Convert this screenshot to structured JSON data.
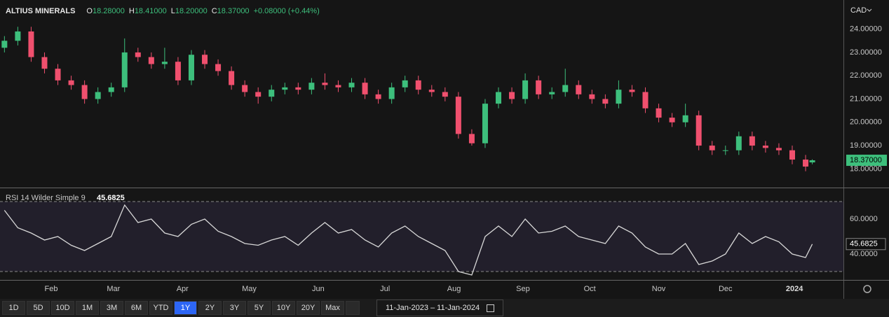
{
  "header": {
    "symbol": "ALTIUS MINERALS",
    "ohlc": [
      {
        "label": "O",
        "value": "18.28000"
      },
      {
        "label": "H",
        "value": "18.41000"
      },
      {
        "label": "L",
        "value": "18.20000"
      },
      {
        "label": "C",
        "value": "18.37000"
      }
    ],
    "change": "+0.08000 (+0.44%)",
    "currency": "CAD"
  },
  "chart_data": [
    {
      "type": "candlestick",
      "up_color": "#3dbf7c",
      "down_color": "#f0506e",
      "x": [
        0,
        6,
        12,
        18,
        24,
        30,
        36,
        42,
        48,
        54,
        60,
        66,
        72,
        78,
        84,
        90,
        96,
        102,
        108,
        114,
        120,
        126,
        132,
        138,
        144,
        150,
        156,
        162,
        168,
        174,
        180,
        186,
        192,
        198,
        204,
        210,
        216,
        222,
        228,
        234,
        240,
        246,
        252,
        258,
        264,
        270,
        276,
        282,
        288,
        294,
        300,
        306,
        312,
        318,
        324,
        330,
        336,
        342,
        348,
        354,
        360,
        363
      ],
      "open": [
        23.2,
        23.5,
        23.9,
        22.8,
        22.3,
        21.8,
        21.6,
        21.0,
        21.3,
        21.5,
        23.0,
        22.8,
        22.5,
        22.6,
        21.8,
        22.9,
        22.5,
        22.2,
        21.6,
        21.3,
        21.1,
        21.4,
        21.5,
        21.4,
        21.7,
        21.6,
        21.5,
        21.7,
        21.2,
        21.0,
        21.5,
        21.8,
        21.4,
        21.3,
        21.1,
        19.5,
        19.1,
        20.8,
        21.3,
        21.0,
        21.8,
        21.2,
        21.3,
        21.6,
        21.2,
        21.0,
        20.8,
        21.4,
        21.3,
        20.6,
        20.2,
        20.0,
        20.3,
        19.0,
        18.8,
        18.8,
        19.4,
        19.0,
        18.9,
        18.8,
        18.4,
        18.28
      ],
      "high": [
        23.7,
        24.1,
        24.1,
        23.0,
        22.5,
        22.0,
        21.8,
        21.5,
        21.7,
        23.6,
        23.2,
        23.0,
        23.2,
        22.8,
        23.1,
        23.1,
        22.7,
        22.4,
        21.8,
        21.5,
        21.6,
        21.7,
        21.7,
        21.9,
        22.1,
        21.8,
        21.9,
        21.9,
        21.4,
        21.7,
        22.0,
        22.0,
        21.6,
        21.5,
        21.3,
        19.7,
        21.0,
        21.5,
        21.5,
        22.1,
        22.0,
        21.5,
        22.3,
        21.8,
        21.4,
        21.2,
        21.8,
        21.6,
        21.5,
        20.8,
        20.4,
        20.8,
        20.5,
        19.2,
        19.0,
        19.6,
        19.6,
        19.2,
        19.1,
        19.0,
        18.6,
        18.41
      ],
      "low": [
        23.0,
        23.3,
        22.6,
        22.1,
        21.6,
        21.4,
        20.8,
        20.8,
        21.1,
        21.3,
        22.6,
        22.3,
        22.3,
        21.6,
        21.6,
        22.3,
        22.0,
        21.4,
        21.1,
        20.8,
        20.9,
        21.2,
        21.2,
        21.2,
        21.4,
        21.3,
        21.3,
        21.0,
        20.8,
        20.8,
        21.3,
        21.2,
        21.1,
        20.9,
        19.3,
        19.0,
        18.9,
        20.6,
        20.8,
        20.8,
        21.0,
        21.0,
        21.1,
        21.0,
        20.8,
        20.6,
        20.6,
        21.1,
        20.4,
        20.0,
        19.8,
        19.8,
        18.8,
        18.6,
        18.6,
        18.6,
        18.8,
        18.7,
        18.6,
        18.2,
        17.9,
        18.2
      ],
      "close": [
        23.5,
        23.9,
        22.8,
        22.3,
        21.8,
        21.6,
        21.0,
        21.3,
        21.5,
        23.0,
        22.8,
        22.5,
        22.6,
        21.8,
        22.9,
        22.5,
        22.2,
        21.6,
        21.3,
        21.1,
        21.4,
        21.5,
        21.4,
        21.7,
        21.6,
        21.5,
        21.7,
        21.2,
        21.0,
        21.5,
        21.8,
        21.4,
        21.3,
        21.1,
        19.5,
        19.1,
        20.8,
        21.3,
        21.0,
        21.8,
        21.2,
        21.3,
        21.6,
        21.2,
        21.0,
        20.8,
        21.4,
        21.3,
        20.6,
        20.2,
        20.0,
        20.3,
        19.0,
        18.8,
        18.8,
        19.4,
        19.0,
        18.9,
        18.8,
        18.4,
        18.1,
        18.37
      ],
      "last_label": "18.37000",
      "xlim": [
        -2,
        377
      ],
      "ylim": [
        17.2,
        25.1
      ],
      "yticks": [
        {
          "value": 18,
          "label": "18.00000"
        },
        {
          "value": 19,
          "label": "19.00000"
        },
        {
          "value": 20,
          "label": "20.00000"
        },
        {
          "value": 21,
          "label": "21.00000"
        },
        {
          "value": 22,
          "label": "22.00000"
        },
        {
          "value": 23,
          "label": "23.00000"
        },
        {
          "value": 24,
          "label": "24.00000"
        }
      ]
    },
    {
      "type": "line",
      "title": "RSI 14 Wilder Simple 9",
      "current_label": "45.6825",
      "color": "#d8d8d8",
      "x": [
        0,
        6,
        12,
        18,
        24,
        30,
        36,
        42,
        48,
        54,
        60,
        66,
        72,
        78,
        84,
        90,
        96,
        102,
        108,
        114,
        120,
        126,
        132,
        138,
        144,
        150,
        156,
        162,
        168,
        174,
        180,
        186,
        192,
        198,
        204,
        210,
        216,
        222,
        228,
        234,
        240,
        246,
        252,
        258,
        264,
        270,
        276,
        282,
        288,
        294,
        300,
        306,
        312,
        318,
        324,
        330,
        336,
        342,
        348,
        354,
        360,
        363
      ],
      "values": [
        65,
        55,
        52,
        48,
        50,
        45,
        42,
        46,
        50,
        68,
        58,
        60,
        52,
        50,
        57,
        60,
        53,
        50,
        46,
        45,
        48,
        50,
        45,
        52,
        58,
        52,
        54,
        48,
        44,
        52,
        56,
        50,
        46,
        42,
        30,
        28,
        50,
        56,
        50,
        60,
        52,
        53,
        56,
        50,
        48,
        46,
        56,
        52,
        44,
        40,
        40,
        46,
        34,
        36,
        40,
        52,
        46,
        50,
        47,
        40,
        38,
        45.6825
      ],
      "band": [
        30,
        70
      ],
      "xlim": [
        -2,
        377
      ],
      "ylim": [
        25.2,
        77.2
      ],
      "yticks": [
        {
          "value": 40,
          "label": "40.0000"
        },
        {
          "value": 60,
          "label": "60.0000"
        }
      ],
      "xticks": [
        {
          "value": 21,
          "label": "Feb"
        },
        {
          "value": 49,
          "label": "Mar"
        },
        {
          "value": 80,
          "label": "Apr"
        },
        {
          "value": 110,
          "label": "May"
        },
        {
          "value": 141,
          "label": "Jun"
        },
        {
          "value": 171,
          "label": "Jul"
        },
        {
          "value": 202,
          "label": "Aug"
        },
        {
          "value": 233,
          "label": "Sep"
        },
        {
          "value": 263,
          "label": "Oct"
        },
        {
          "value": 294,
          "label": "Nov"
        },
        {
          "value": 324,
          "label": "Dec"
        },
        {
          "value": 355,
          "label": "2024"
        }
      ]
    }
  ],
  "toolbar": {
    "ranges": [
      "1D",
      "5D",
      "10D",
      "1M",
      "3M",
      "6M",
      "YTD",
      "1Y",
      "2Y",
      "3Y",
      "5Y",
      "10Y",
      "20Y",
      "Max"
    ],
    "active": "1Y",
    "date_range": "11-Jan-2023  –  11-Jan-2024"
  }
}
